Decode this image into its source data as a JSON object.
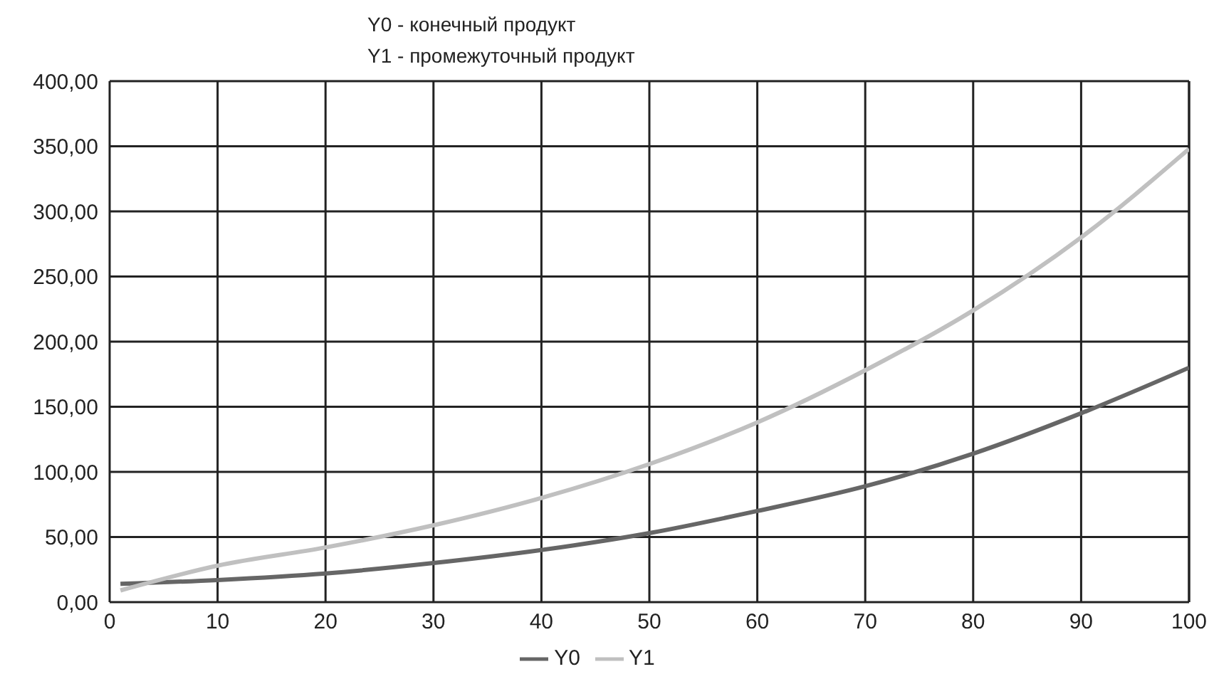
{
  "chart_data": {
    "type": "line",
    "title": "Y0 - конечный продукт",
    "subtitle": "Y1 - промежуточный продукт",
    "x": [
      1,
      10,
      20,
      30,
      40,
      50,
      60,
      70,
      80,
      90,
      100
    ],
    "series": [
      {
        "name": "Y0",
        "color": "#666666",
        "values": [
          14,
          17,
          22,
          30,
          40,
          53,
          70,
          89,
          114,
          145,
          180
        ]
      },
      {
        "name": "Y1",
        "color": "#c0c0c0",
        "values": [
          9,
          28,
          42,
          59,
          80,
          106,
          138,
          178,
          224,
          280,
          348
        ]
      }
    ],
    "xlim": [
      0,
      100
    ],
    "xticks": [
      0,
      10,
      20,
      30,
      40,
      50,
      60,
      70,
      80,
      90,
      100
    ],
    "ylim": [
      0,
      400
    ],
    "yticks": [
      {
        "value": 0,
        "label": "0,00"
      },
      {
        "value": 50,
        "label": "50,00"
      },
      {
        "value": 100,
        "label": "100,00"
      },
      {
        "value": 150,
        "label": "150,00"
      },
      {
        "value": 200,
        "label": "200,00"
      },
      {
        "value": 250,
        "label": "250,00"
      },
      {
        "value": 300,
        "label": "300,00"
      },
      {
        "value": 350,
        "label": "350,00"
      },
      {
        "value": 400,
        "label": "400,00"
      }
    ],
    "grid": true,
    "legend": "bottom",
    "marker": "none",
    "line_style": "solid"
  }
}
